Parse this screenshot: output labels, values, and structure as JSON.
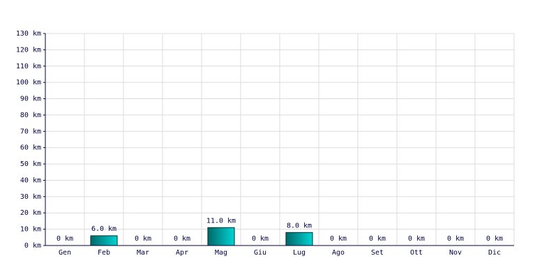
{
  "chart_data": {
    "type": "bar",
    "categories": [
      "Gen",
      "Feb",
      "Mar",
      "Apr",
      "Mag",
      "Giu",
      "Lug",
      "Ago",
      "Set",
      "Ott",
      "Nov",
      "Dic"
    ],
    "values": [
      0,
      6.0,
      0,
      0,
      11.0,
      0,
      8.0,
      0,
      0,
      0,
      0,
      0
    ],
    "value_labels": [
      "0 km",
      "6.0 km",
      "0 km",
      "0 km",
      "11.0 km",
      "0 km",
      "8.0 km",
      "0 km",
      "0 km",
      "0 km",
      "0 km",
      "0 km"
    ],
    "color": "#00d4d4",
    "ylim": [
      0,
      130
    ],
    "yticks": [
      {
        "value": 0,
        "label": "0 km"
      },
      {
        "value": 10,
        "label": "10 km"
      },
      {
        "value": 20,
        "label": "20 km"
      },
      {
        "value": 30,
        "label": "30 km"
      },
      {
        "value": 40,
        "label": "40 km"
      },
      {
        "value": 50,
        "label": "50 km"
      },
      {
        "value": 60,
        "label": "60 km"
      },
      {
        "value": 70,
        "label": "70 km"
      },
      {
        "value": 80,
        "label": "80 km"
      },
      {
        "value": 90,
        "label": "90 km"
      },
      {
        "value": 100,
        "label": "100 km"
      },
      {
        "value": 110,
        "label": "110 km"
      },
      {
        "value": 120,
        "label": "120 km"
      },
      {
        "value": 130,
        "label": "130 km"
      }
    ],
    "grid": true
  }
}
